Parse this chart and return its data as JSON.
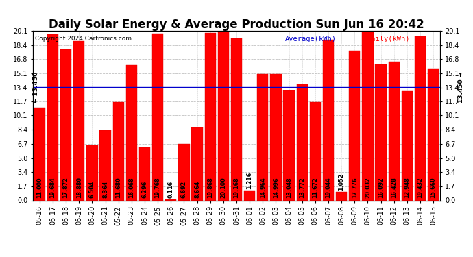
{
  "title": "Daily Solar Energy & Average Production Sun Jun 16 20:42",
  "copyright": "Copyright 2024 Cartronics.com",
  "legend_average": "Average(kWh)",
  "legend_daily": "Daily(kWh)",
  "average_value": 13.45,
  "average_label_left": "← 13.450",
  "average_label_right": "13.450 →",
  "categories": [
    "05-16",
    "05-17",
    "05-18",
    "05-19",
    "05-20",
    "05-21",
    "05-22",
    "05-23",
    "05-24",
    "05-25",
    "05-26",
    "05-27",
    "05-28",
    "05-29",
    "05-30",
    "05-31",
    "06-01",
    "06-02",
    "06-03",
    "06-04",
    "06-05",
    "06-06",
    "06-07",
    "06-08",
    "06-09",
    "06-10",
    "06-11",
    "06-12",
    "06-13",
    "06-14",
    "06-15"
  ],
  "values": [
    11.0,
    19.684,
    17.872,
    18.88,
    6.504,
    8.364,
    11.68,
    16.068,
    6.296,
    19.768,
    0.116,
    6.692,
    8.664,
    19.868,
    20.1,
    19.168,
    1.216,
    14.964,
    14.996,
    13.048,
    13.772,
    11.672,
    19.044,
    1.052,
    17.776,
    20.032,
    16.092,
    16.428,
    12.948,
    19.432,
    15.66
  ],
  "bar_color": "#ff0000",
  "bar_edgecolor": "#dd0000",
  "average_line_color": "#0000cc",
  "ylim": [
    0.0,
    20.1
  ],
  "yticks": [
    0.0,
    1.7,
    3.4,
    5.0,
    6.7,
    8.4,
    10.1,
    11.7,
    13.4,
    15.1,
    16.8,
    18.4,
    20.1
  ],
  "grid_color": "#bbbbbb",
  "background_color": "#ffffff",
  "title_fontsize": 12,
  "tick_fontsize": 7,
  "value_fontsize": 5.8
}
